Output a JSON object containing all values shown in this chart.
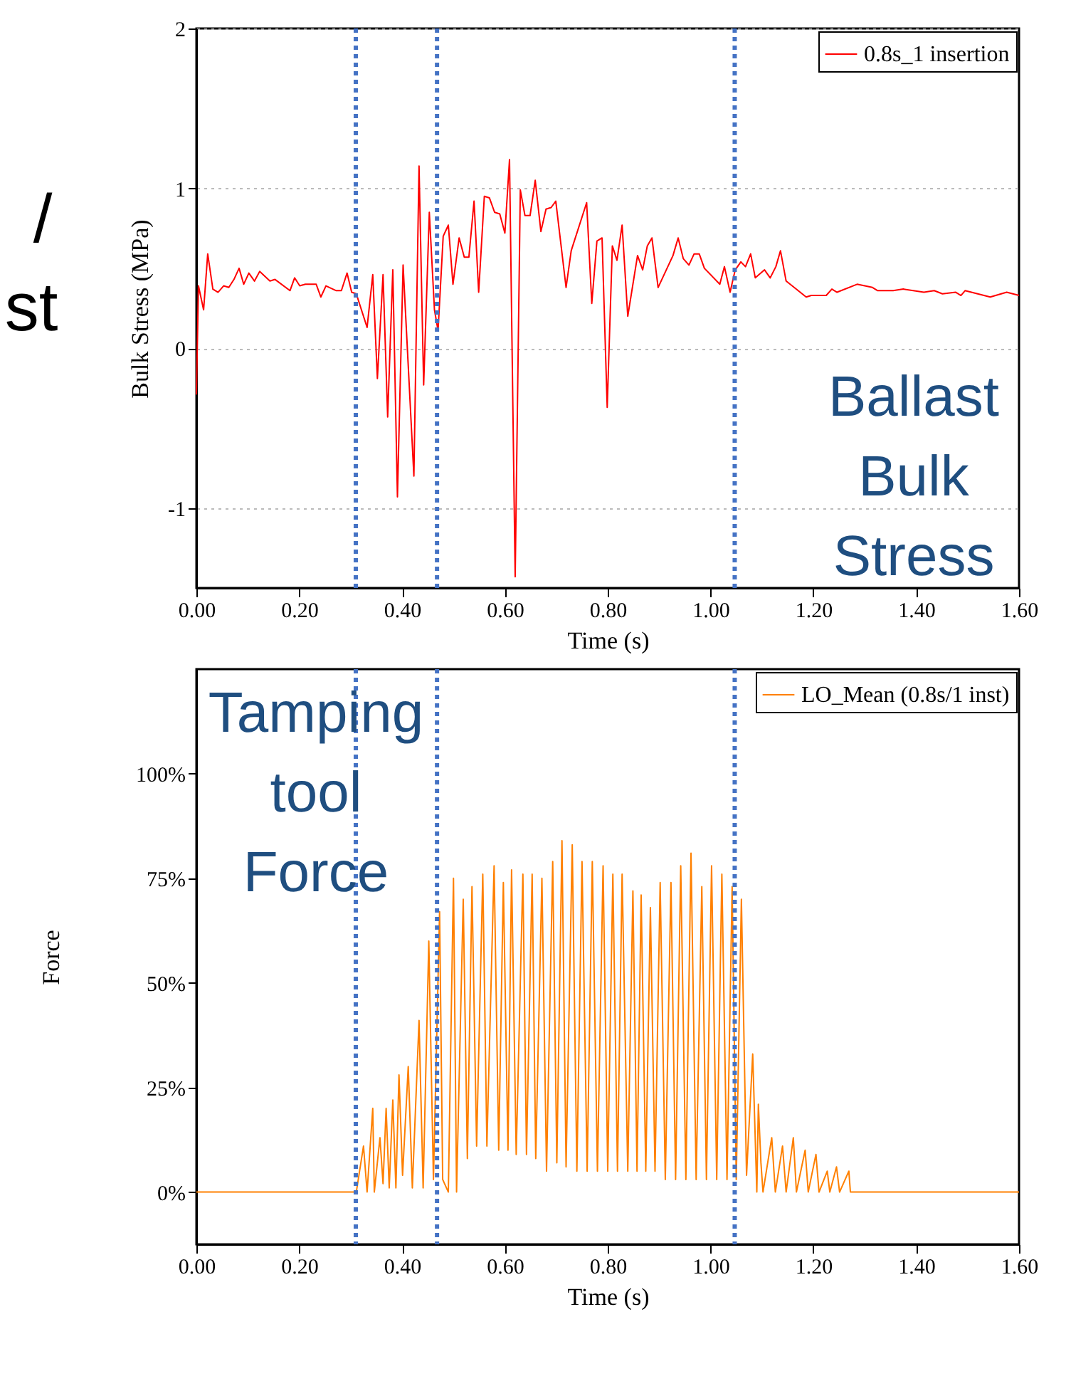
{
  "chart_data": [
    {
      "type": "line",
      "xlabel": "Time (s)",
      "ylabel": "Bulk Stress (MPa)",
      "xlim": [
        0,
        1.6
      ],
      "ylim": [
        -1.5,
        2
      ],
      "xticks": [
        {
          "value": 0,
          "label": "0.00"
        },
        {
          "value": 0.2,
          "label": "0.20"
        },
        {
          "value": 0.4,
          "label": "0.40"
        },
        {
          "value": 0.6,
          "label": "0.60"
        },
        {
          "value": 0.8,
          "label": "0.80"
        },
        {
          "value": 1.0,
          "label": "1.00"
        },
        {
          "value": 1.2,
          "label": "1.20"
        },
        {
          "value": 1.4,
          "label": "1.40"
        },
        {
          "value": 1.6,
          "label": "1.60"
        }
      ],
      "yticks": [
        -1,
        0,
        1,
        2
      ],
      "grid": "y",
      "legend": "top right",
      "line_style": "solid",
      "ref_lines": [
        {
          "axis": "x",
          "value": 0.31,
          "color": "#4472c4",
          "line_style": "dotted"
        },
        {
          "axis": "x",
          "value": 0.468,
          "color": "#4472c4",
          "line_style": "dotted"
        },
        {
          "axis": "x",
          "value": 1.047,
          "color": "#4472c4",
          "line_style": "dotted"
        }
      ],
      "annotations": [
        "Ballast Bulk Stress",
        "/",
        "st"
      ],
      "series": [
        {
          "name": "0.8s_1 insertion",
          "color": "#ff0000",
          "x": [
            0,
            0.004,
            0.014,
            0.022,
            0.032,
            0.042,
            0.053,
            0.063,
            0.073,
            0.083,
            0.092,
            0.102,
            0.113,
            0.123,
            0.143,
            0.153,
            0.182,
            0.191,
            0.201,
            0.212,
            0.233,
            0.242,
            0.252,
            0.272,
            0.282,
            0.293,
            0.302,
            0.311,
            0.332,
            0.343,
            0.352,
            0.363,
            0.372,
            0.382,
            0.391,
            0.402,
            0.423,
            0.433,
            0.442,
            0.453,
            0.463,
            0.47,
            0.48,
            0.49,
            0.499,
            0.511,
            0.521,
            0.53,
            0.54,
            0.549,
            0.56,
            0.57,
            0.58,
            0.59,
            0.6,
            0.609,
            0.62,
            0.63,
            0.639,
            0.649,
            0.659,
            0.67,
            0.68,
            0.69,
            0.699,
            0.719,
            0.729,
            0.759,
            0.769,
            0.779,
            0.789,
            0.799,
            0.809,
            0.818,
            0.828,
            0.839,
            0.858,
            0.868,
            0.877,
            0.886,
            0.898,
            0.927,
            0.937,
            0.947,
            0.958,
            0.968,
            0.978,
            0.988,
            1.018,
            1.027,
            1.038,
            1.048,
            1.059,
            1.068,
            1.078,
            1.087,
            1.105,
            1.116,
            1.127,
            1.136,
            1.147,
            1.186,
            1.196,
            1.225,
            1.236,
            1.246,
            1.285,
            1.315,
            1.325,
            1.355,
            1.375,
            1.415,
            1.435,
            1.451,
            1.477,
            1.487,
            1.495,
            1.544,
            1.576,
            1.6
          ],
          "values": [
            -0.29,
            0.39,
            0.24,
            0.59,
            0.37,
            0.35,
            0.39,
            0.38,
            0.43,
            0.5,
            0.4,
            0.47,
            0.42,
            0.48,
            0.42,
            0.43,
            0.36,
            0.44,
            0.39,
            0.4,
            0.4,
            0.32,
            0.39,
            0.36,
            0.36,
            0.47,
            0.35,
            0.34,
            0.13,
            0.46,
            -0.19,
            0.46,
            -0.43,
            0.49,
            -0.93,
            0.52,
            -0.8,
            1.14,
            -0.23,
            0.85,
            0.24,
            0.11,
            0.7,
            0.77,
            0.4,
            0.69,
            0.57,
            0.57,
            0.92,
            0.35,
            0.95,
            0.94,
            0.85,
            0.84,
            0.72,
            1.18,
            -1.43,
            0.99,
            0.83,
            0.83,
            1.05,
            0.73,
            0.87,
            0.88,
            0.92,
            0.38,
            0.61,
            0.91,
            0.28,
            0.67,
            0.69,
            -0.37,
            0.64,
            0.55,
            0.77,
            0.2,
            0.58,
            0.49,
            0.64,
            0.69,
            0.38,
            0.58,
            0.69,
            0.56,
            0.52,
            0.59,
            0.59,
            0.5,
            0.4,
            0.51,
            0.35,
            0.49,
            0.54,
            0.51,
            0.59,
            0.44,
            0.49,
            0.44,
            0.51,
            0.61,
            0.42,
            0.32,
            0.33,
            0.33,
            0.37,
            0.35,
            0.4,
            0.38,
            0.36,
            0.36,
            0.37,
            0.35,
            0.36,
            0.34,
            0.35,
            0.33,
            0.36,
            0.32,
            0.35,
            0.33
          ]
        }
      ]
    },
    {
      "type": "line",
      "xlabel": "Time (s)",
      "ylabel": "Force",
      "xlim": [
        0,
        1.6
      ],
      "ylim": [
        -12.5,
        125
      ],
      "xticks": [
        {
          "value": 0,
          "label": "0.00"
        },
        {
          "value": 0.2,
          "label": "0.20"
        },
        {
          "value": 0.4,
          "label": "0.40"
        },
        {
          "value": 0.6,
          "label": "0.60"
        },
        {
          "value": 0.8,
          "label": "0.80"
        },
        {
          "value": 1.0,
          "label": "1.00"
        },
        {
          "value": 1.2,
          "label": "1.20"
        },
        {
          "value": 1.4,
          "label": "1.40"
        },
        {
          "value": 1.6,
          "label": "1.60"
        }
      ],
      "yticks": [
        {
          "value": 0,
          "label": "0%"
        },
        {
          "value": 25,
          "label": "25%"
        },
        {
          "value": 50,
          "label": "50%"
        },
        {
          "value": 75,
          "label": "75%"
        },
        {
          "value": 100,
          "label": "100%"
        }
      ],
      "grid": false,
      "legend": "top right",
      "line_style": "solid",
      "ref_lines": [
        {
          "axis": "x",
          "value": 0.31,
          "color": "#4472c4",
          "line_style": "dotted"
        },
        {
          "axis": "x",
          "value": 0.468,
          "color": "#4472c4",
          "line_style": "dotted"
        },
        {
          "axis": "x",
          "value": 1.047,
          "color": "#4472c4",
          "line_style": "dotted"
        }
      ],
      "annotations": [
        "Tamping tool Force"
      ],
      "series": [
        {
          "name": "LO_Mean (0.8s/1 inst)",
          "color": "#ff8000",
          "x": [
            0,
            0.311,
            0.325,
            0.332,
            0.343,
            0.346,
            0.357,
            0.363,
            0.369,
            0.375,
            0.382,
            0.388,
            0.394,
            0.401,
            0.412,
            0.42,
            0.433,
            0.441,
            0.452,
            0.461,
            0.473,
            0.479,
            0.49,
            0.5,
            0.506,
            0.519,
            0.527,
            0.536,
            0.545,
            0.557,
            0.565,
            0.579,
            0.588,
            0.597,
            0.606,
            0.613,
            0.622,
            0.635,
            0.642,
            0.653,
            0.66,
            0.672,
            0.681,
            0.693,
            0.701,
            0.711,
            0.719,
            0.731,
            0.74,
            0.75,
            0.76,
            0.77,
            0.78,
            0.791,
            0.8,
            0.81,
            0.819,
            0.828,
            0.839,
            0.849,
            0.857,
            0.865,
            0.874,
            0.883,
            0.892,
            0.902,
            0.912,
            0.923,
            0.932,
            0.942,
            0.952,
            0.962,
            0.972,
            0.983,
            0.992,
            1.002,
            1.012,
            1.022,
            1.032,
            1.042,
            1.05,
            1.06,
            1.07,
            1.082,
            1.09,
            1.093,
            1.098,
            1.102,
            1.119,
            1.126,
            1.14,
            1.147,
            1.161,
            1.167,
            1.184,
            1.19,
            1.205,
            1.211,
            1.227,
            1.232,
            1.245,
            1.251,
            1.269,
            1.272,
            1.6
          ],
          "values": [
            0,
            0,
            11,
            0,
            20,
            0,
            13,
            2,
            20,
            1,
            22,
            1,
            28,
            4,
            30,
            1,
            41,
            1,
            60,
            3,
            67,
            3,
            0,
            75,
            0,
            70,
            8,
            73,
            11,
            76,
            11,
            78,
            10,
            74,
            10,
            77,
            9,
            76,
            9,
            76,
            8,
            75,
            5,
            79,
            7,
            84,
            6,
            83,
            5,
            79,
            5,
            79,
            5,
            78,
            5,
            76,
            5,
            76,
            5,
            72,
            5,
            71,
            5,
            68,
            5,
            74,
            3,
            74,
            3,
            78,
            3,
            81,
            3,
            73,
            3,
            78,
            3,
            76,
            3,
            73,
            3,
            70,
            4,
            33,
            0,
            21,
            7,
            0,
            13,
            0,
            11,
            0,
            13,
            0,
            10,
            0,
            9,
            0,
            5,
            0,
            6,
            0,
            5,
            0,
            0
          ]
        }
      ]
    }
  ]
}
